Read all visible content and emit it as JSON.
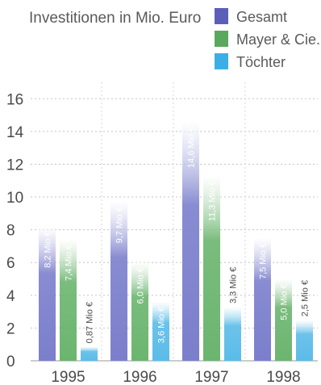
{
  "chart_data": {
    "type": "bar",
    "title": "Investitionen in Mio. Euro",
    "xlabel": "",
    "ylabel": "",
    "categories": [
      "1995",
      "1996",
      "1997",
      "1998"
    ],
    "series": [
      {
        "name": "Gesamt",
        "values": [
          8.2,
          9.7,
          14.6,
          7.5
        ],
        "labels": [
          "8,2 Mio €",
          "9,7 Mio €",
          "14,6 Mio €",
          "7,5 Mio €"
        ]
      },
      {
        "name": "Mayer & Cie.",
        "values": [
          7.4,
          6.0,
          11.3,
          5.0
        ],
        "labels": [
          "7,4 Mio €",
          "6,0 Mio €",
          "11,3 Mio €",
          "5,0 Mio €"
        ]
      },
      {
        "name": "Töchter",
        "values": [
          0.87,
          3.6,
          3.3,
          2.5
        ],
        "labels": [
          "0,87 Mio €",
          "3,6 Mio €",
          "3,3 Mio €",
          "2,5 Mio €"
        ]
      }
    ],
    "ylim": [
      0,
      17
    ],
    "yticks": [
      0,
      2,
      4,
      6,
      8,
      10,
      12,
      14,
      16
    ],
    "grid": true,
    "legend": "top-right",
    "colors": {
      "series": [
        "#7b7fcc",
        "#6bb56f",
        "#5bbce8"
      ],
      "legend_swatch": [
        "#5c5fb8",
        "#5aa85e",
        "#3daee3"
      ]
    }
  }
}
